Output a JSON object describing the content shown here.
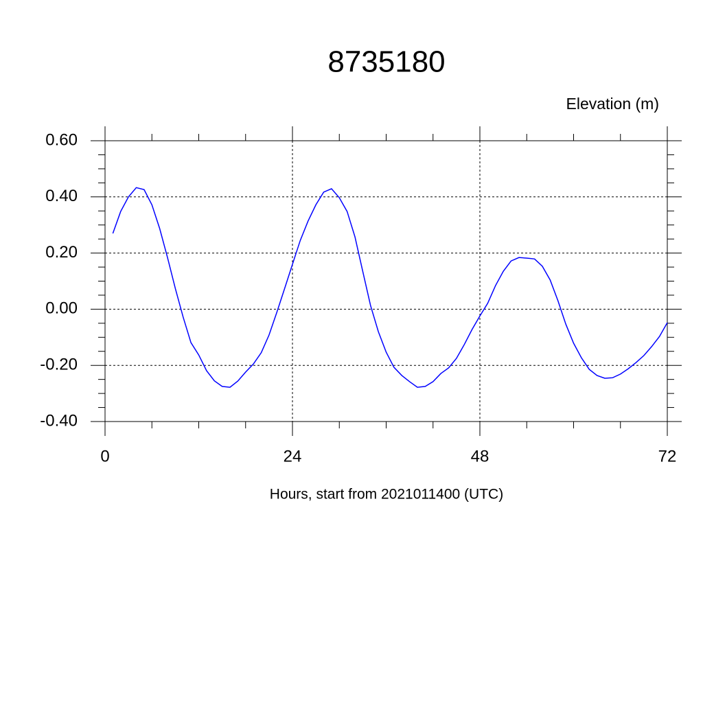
{
  "chart_data": {
    "type": "line",
    "title": "8735180",
    "ylabel": "Elevation (m)",
    "xlabel": "Hours, start from 2021011400 (UTC)",
    "x": [
      1,
      2,
      3,
      4,
      5,
      6,
      7,
      8,
      9,
      10,
      11,
      12,
      13,
      14,
      15,
      16,
      17,
      18,
      19,
      20,
      21,
      22,
      23,
      24,
      25,
      26,
      27,
      28,
      29,
      30,
      31,
      32,
      33,
      34,
      35,
      36,
      37,
      38,
      39,
      40,
      41,
      42,
      43,
      44,
      45,
      46,
      47,
      48,
      49,
      50,
      51,
      52,
      53,
      54,
      55,
      56,
      57,
      58,
      59,
      60,
      61,
      62,
      63,
      64,
      65,
      66,
      67,
      68,
      69,
      70,
      71,
      72
    ],
    "series": [
      {
        "color": "#0000ff",
        "values": [
          0.27,
          0.348,
          0.4,
          0.433,
          0.426,
          0.372,
          0.287,
          0.184,
          0.074,
          -0.028,
          -0.119,
          -0.163,
          -0.219,
          -0.255,
          -0.275,
          -0.278,
          -0.256,
          -0.224,
          -0.195,
          -0.155,
          -0.092,
          -0.011,
          0.074,
          0.16,
          0.245,
          0.314,
          0.372,
          0.417,
          0.429,
          0.397,
          0.348,
          0.258,
          0.135,
          0.013,
          -0.08,
          -0.153,
          -0.207,
          -0.236,
          -0.258,
          -0.278,
          -0.275,
          -0.258,
          -0.229,
          -0.209,
          -0.175,
          -0.126,
          -0.072,
          -0.024,
          0.021,
          0.084,
          0.135,
          0.172,
          0.184,
          0.182,
          0.179,
          0.153,
          0.104,
          0.03,
          -0.053,
          -0.121,
          -0.173,
          -0.214,
          -0.236,
          -0.246,
          -0.244,
          -0.231,
          -0.212,
          -0.19,
          -0.165,
          -0.133,
          -0.097,
          -0.048
        ]
      }
    ],
    "xlim": [
      0,
      72
    ],
    "xticks": [
      0,
      24,
      48,
      72
    ],
    "ylim": [
      -0.4,
      0.6
    ],
    "yticks": [
      {
        "value": -0.4,
        "label": "-0.40"
      },
      {
        "value": -0.2,
        "label": "-0.20"
      },
      {
        "value": 0,
        "label": "0.00"
      },
      {
        "value": 0.2,
        "label": "0.20"
      },
      {
        "value": 0.4,
        "label": "0.40"
      },
      {
        "value": 0.6,
        "label": "0.60"
      }
    ],
    "grid": true
  }
}
